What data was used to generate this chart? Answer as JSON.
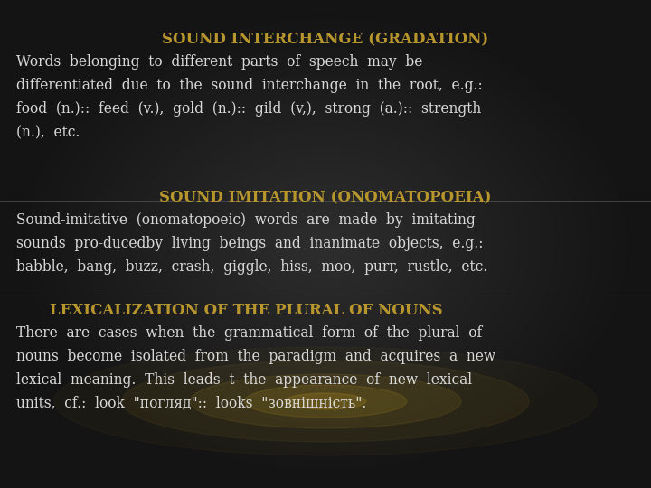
{
  "background_color": "#111111",
  "bg_gradient_center": "#2a2a2a",
  "bg_gradient_edge": "#080808",
  "title1": "SOUND INTERCHANGE (GRADATION)",
  "title1_color": "#b8962e",
  "body1_lines": [
    "Words  belonging  to  different  parts  of  speech  may  be",
    "differentiated  due  to  the  sound  interchange  in  the  root,  e.g.:",
    "food  (n.)::  feed  (v.),  gold  (n.)::  gild  (v,),  strong  (a.)::  strength",
    "(n.),  etc."
  ],
  "body1_color": "#d8d8d8",
  "title2": "SOUND IMITATION (ONOMATOPOEIA)",
  "title2_color": "#b8962e",
  "body2_lines": [
    "Sound-imitative  (onomatopoeic)  words  are  made  by  imitating",
    "sounds  pro-ducedby  living  beings  and  inanimate  objects,  e.g.:",
    "babble,  bang,  buzz,  crash,  giggle,  hiss,  moo,  purr,  rustle,  etc."
  ],
  "body2_color": "#d8d8d8",
  "title3": "LEXICALIZATION OF THE PLURAL OF NOUNS",
  "title3_color": "#b8962e",
  "body3_lines": [
    "There  are  cases  when  the  grammatical  form  of  the  plural  of",
    "nouns  become  isolated  from  the  paradigm  and  acquires  a  new",
    "lexical  meaning.  This  leads  t  the  appearance  of  new  lexical",
    "units,  cf.:  look  \"погляд\"::  looks  \"зовнішність\"."
  ],
  "body3_color": "#d8d8d8",
  "body_fontsize": 11.2,
  "title_fontsize": 12.0,
  "glow_color": "#c8a020",
  "fig_width": 7.2,
  "fig_height": 5.4,
  "dpi": 100
}
